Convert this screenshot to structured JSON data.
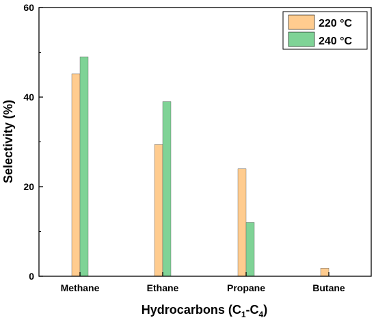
{
  "chart_data": {
    "type": "bar",
    "categories": [
      "Methane",
      "Ethane",
      "Propane",
      "Butane"
    ],
    "series": [
      {
        "name": "220 °C",
        "color": "#FFCC8F",
        "values": [
          45.2,
          29.4,
          24.0,
          1.8
        ]
      },
      {
        "name": "240 °C",
        "color": "#7FD396",
        "values": [
          49.0,
          39.0,
          12.0,
          null
        ]
      }
    ],
    "xlabel": {
      "main": "Hydrocarbons (C",
      "sub1": "1",
      "mid": "-C",
      "sub2": "4",
      "end": ")"
    },
    "ylabel": "Selectivity (%)",
    "ylim": [
      0,
      60
    ],
    "yticks": [
      "0",
      "20",
      "40",
      "60"
    ],
    "grid": false,
    "legend_position": "top-right"
  }
}
